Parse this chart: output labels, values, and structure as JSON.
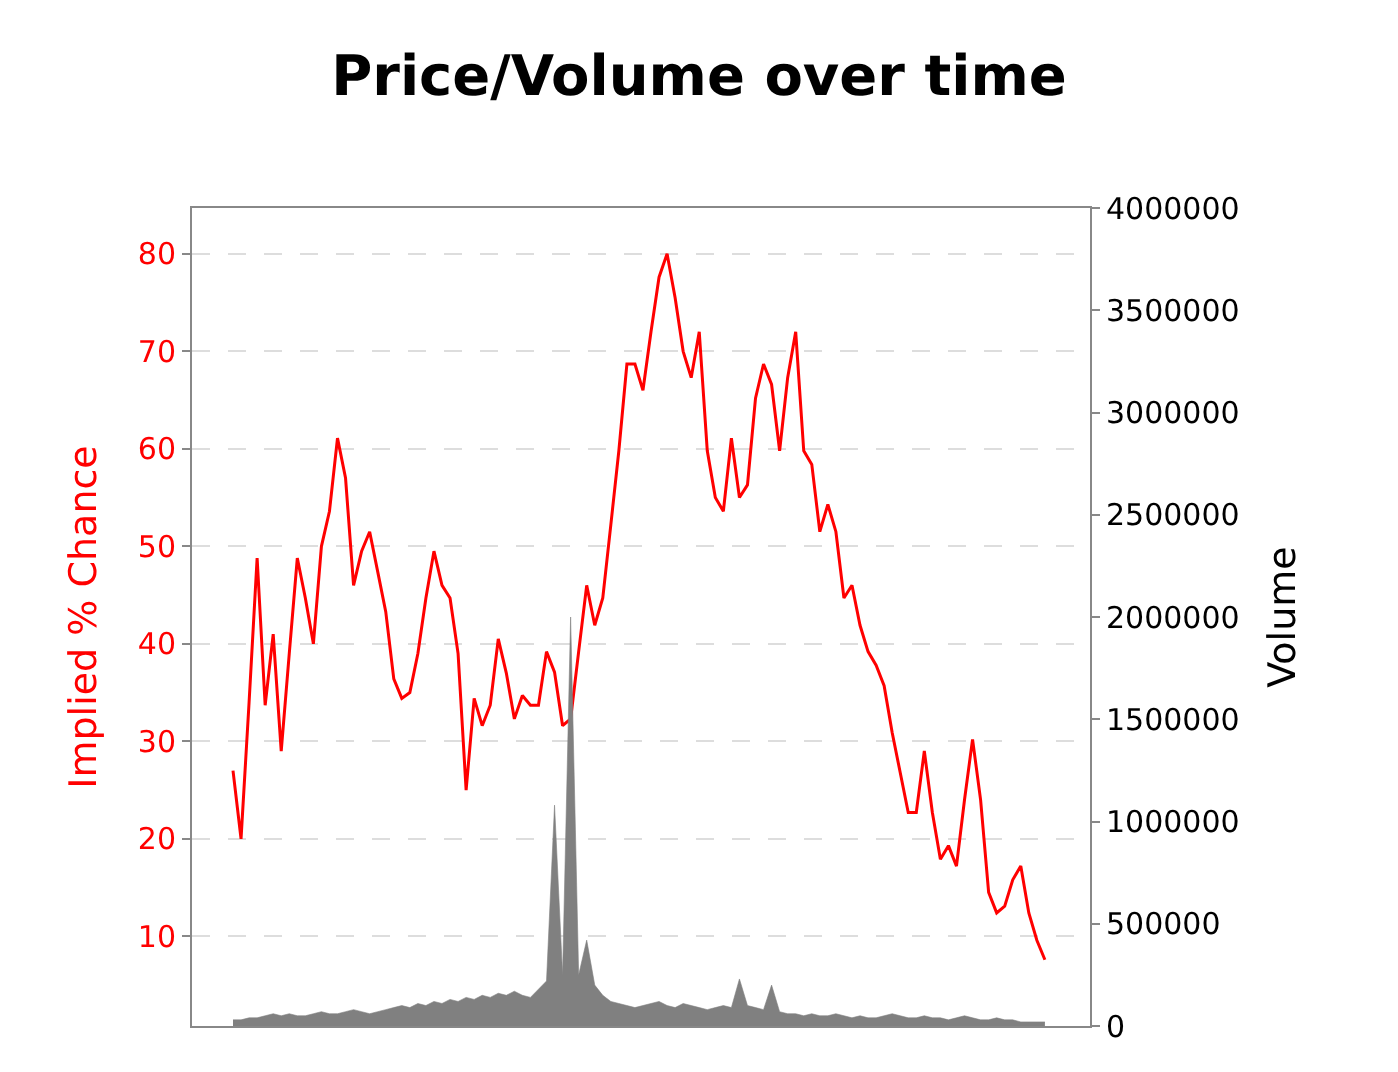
{
  "chart_data": {
    "type": "line",
    "title": "Price/Volume over time",
    "ylabel": "Implied % Chance",
    "y2label": "Volume",
    "categories": [
      null,
      null,
      null,
      null,
      null,
      null,
      null,
      null,
      null,
      null,
      null,
      null,
      null,
      null,
      null,
      null,
      null,
      null,
      null,
      null,
      null,
      null,
      null,
      null,
      null,
      null,
      null,
      null,
      null,
      null,
      null,
      null,
      null,
      null,
      null,
      null,
      null,
      null,
      null,
      null,
      null,
      null,
      null,
      null,
      null,
      null,
      null,
      null,
      null,
      null,
      null,
      null,
      null,
      null,
      null,
      null,
      null,
      null,
      null,
      null,
      null,
      null,
      null,
      null,
      null,
      null,
      null,
      null,
      null,
      null,
      null,
      null,
      null,
      null,
      null,
      null,
      null,
      null,
      null,
      null,
      null,
      null,
      null,
      null,
      null,
      null,
      null,
      null,
      null,
      null,
      null,
      null,
      null,
      null,
      null,
      null,
      null,
      null,
      null,
      null,
      null,
      null
    ],
    "series": [
      {
        "type": "area",
        "axis": "y2",
        "color": "#808080",
        "values": [
          30000,
          30000,
          40000,
          40000,
          50000,
          60000,
          50000,
          60000,
          50000,
          50000,
          60000,
          70000,
          60000,
          60000,
          70000,
          80000,
          70000,
          60000,
          70000,
          80000,
          90000,
          100000,
          90000,
          110000,
          100000,
          120000,
          110000,
          130000,
          120000,
          140000,
          130000,
          150000,
          140000,
          160000,
          150000,
          170000,
          150000,
          140000,
          180000,
          220000,
          1080000,
          250000,
          2000000,
          250000,
          420000,
          200000,
          150000,
          120000,
          110000,
          100000,
          90000,
          100000,
          110000,
          120000,
          100000,
          90000,
          110000,
          100000,
          90000,
          80000,
          90000,
          100000,
          90000,
          230000,
          100000,
          90000,
          80000,
          200000,
          70000,
          60000,
          60000,
          50000,
          60000,
          50000,
          50000,
          60000,
          50000,
          40000,
          50000,
          40000,
          40000,
          50000,
          60000,
          50000,
          40000,
          40000,
          50000,
          40000,
          40000,
          30000,
          40000,
          50000,
          40000,
          30000,
          30000,
          40000,
          30000,
          30000,
          20000,
          20000,
          20000,
          20000
        ]
      },
      {
        "axis": "y",
        "color": "#ff0000",
        "values": [
          27,
          20,
          34,
          48.8,
          33.7,
          41,
          29,
          39,
          48.8,
          44.7,
          40,
          50,
          53.6,
          61.1,
          57,
          46,
          49.5,
          51.5,
          47.4,
          43.3,
          36.4,
          34.4,
          35,
          39,
          44.7,
          49.5,
          46,
          44.7,
          39,
          25,
          34.4,
          31.6,
          33.7,
          40.5,
          37,
          32.3,
          34.7,
          33.7,
          33.7,
          39.2,
          37.1,
          31.6,
          32.3,
          39.2,
          46,
          41.9,
          44.7,
          52.2,
          59.8,
          68.7,
          68.7,
          66,
          72,
          77.6,
          80,
          75.5,
          70,
          67.3,
          72,
          59.8,
          55,
          53.6,
          61.1,
          55,
          56.3,
          65.2,
          68.7,
          66.6,
          59.8,
          67.3,
          72,
          59.8,
          58.4,
          51.5,
          54.3,
          51.5,
          44.7,
          46,
          41.9,
          39.2,
          37.8,
          35.7,
          30.9,
          26.8,
          22.7,
          22.7,
          29,
          22.7,
          17.9,
          19.3,
          17.2,
          24,
          30.2,
          24,
          14.5,
          12.4,
          13.1,
          15.8,
          17.2,
          12.4,
          9.6,
          7.6
        ]
      }
    ],
    "ylim": [
      0.8,
      84.7
    ],
    "yticks": [
      10,
      20,
      30,
      40,
      50,
      60,
      70,
      80
    ],
    "y2lim": [
      0,
      4000000
    ],
    "y2ticks": [
      0,
      500000,
      1000000,
      1500000,
      2000000,
      2500000,
      3000000,
      3500000,
      4000000
    ],
    "grid": "y"
  }
}
